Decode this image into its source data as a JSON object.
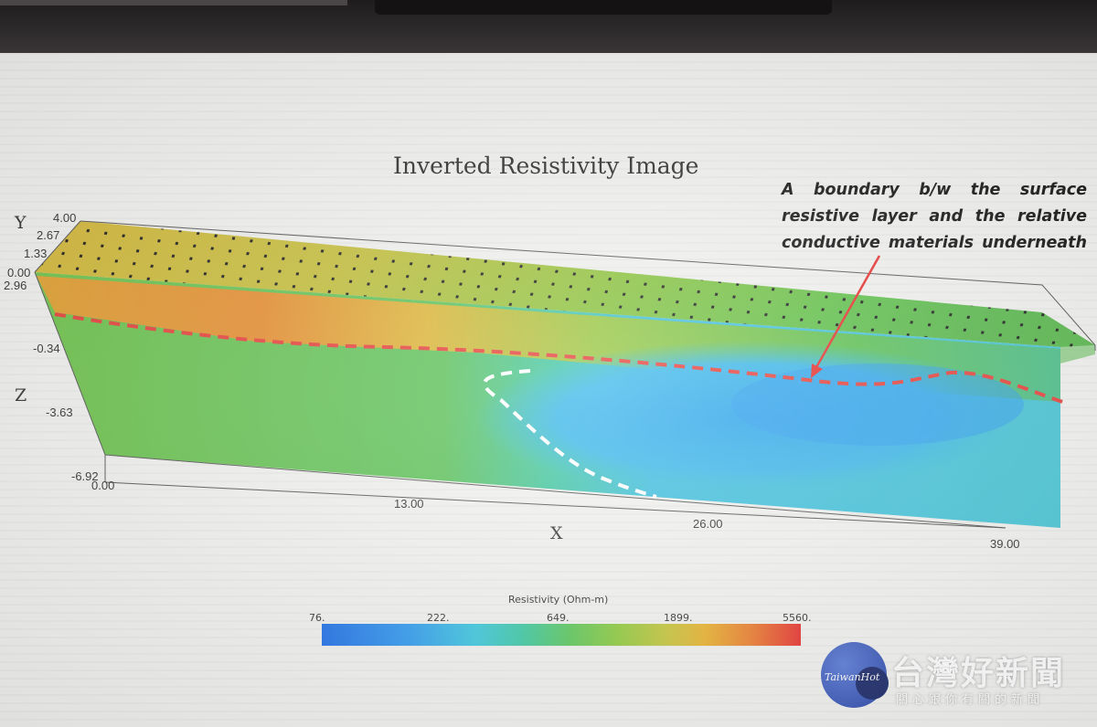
{
  "title": "Inverted Resistivity Image",
  "annotation": {
    "lines": [
      "A boundary b/w the surface",
      "resistive layer and the relative",
      "conductive materials underneath"
    ]
  },
  "axes": {
    "y_name": "Y",
    "z_name": "Z",
    "x_name": "X",
    "y_ticks": [
      "4.00",
      "2.67",
      "1.33",
      "0.00"
    ],
    "z_ticks": [
      "2.96",
      "-0.34",
      "-3.63",
      "-6.92"
    ],
    "x_ticks": [
      "0.00",
      "13.00",
      "26.00",
      "39.00"
    ]
  },
  "colorbar": {
    "title": "Resistivity (Ohm-m)",
    "ticks": [
      "76.",
      "222.",
      "649.",
      "1899.",
      "5560."
    ]
  },
  "colors": {
    "resistive": "#e8302e",
    "conductive": "#2f9af0",
    "boundary_line": "#e8403a",
    "white_boundary": "#ffffff"
  },
  "watermark": {
    "logo_text": "TaiwanHot",
    "name": "台灣好新聞",
    "tagline": "關心跟你有關的新聞"
  }
}
